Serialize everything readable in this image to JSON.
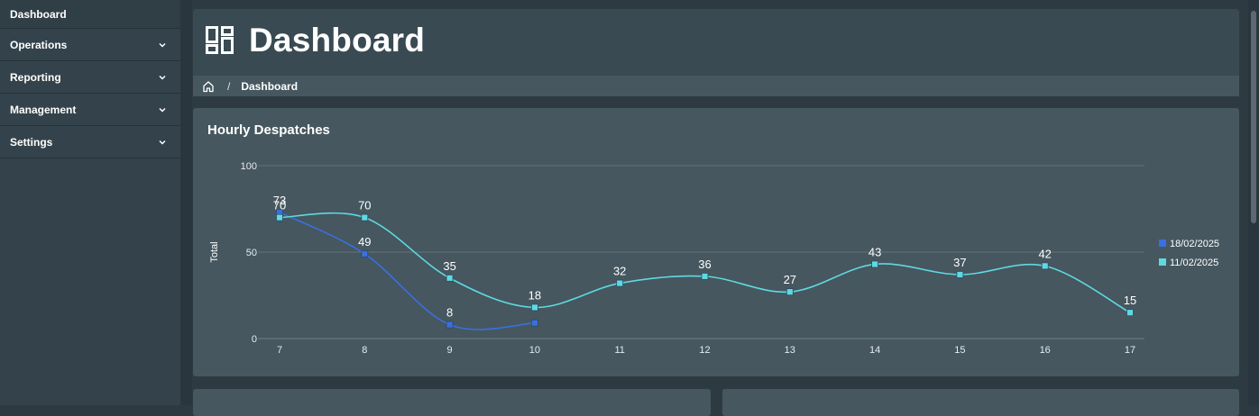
{
  "sidebar": {
    "items": [
      {
        "label": "Dashboard"
      },
      {
        "label": "Operations"
      },
      {
        "label": "Reporting"
      },
      {
        "label": "Management"
      },
      {
        "label": "Settings"
      }
    ]
  },
  "header": {
    "title": "Dashboard",
    "icon": "dashboard-grid-icon"
  },
  "breadcrumb": {
    "separator": "/",
    "current": "Dashboard"
  },
  "colors": {
    "series_a": "#3a6fe0",
    "series_b": "#5fd9e0"
  },
  "chart_data": {
    "type": "line",
    "title": "Hourly Despatches",
    "xlabel": "",
    "ylabel": "Total",
    "x": [
      7,
      8,
      9,
      10,
      11,
      12,
      13,
      14,
      15,
      16,
      17
    ],
    "yticks": [
      0,
      50,
      100
    ],
    "ylim": [
      0,
      100
    ],
    "legend_position": "right",
    "series": [
      {
        "name": "18/02/2025",
        "color": "#3a6fe0",
        "x": [
          7,
          8,
          9,
          10
        ],
        "values": [
          73,
          49,
          8,
          9
        ],
        "labels": [
          "73",
          "49",
          "8",
          ""
        ]
      },
      {
        "name": "11/02/2025",
        "color": "#5fd9e0",
        "x": [
          7,
          8,
          9,
          10,
          11,
          12,
          13,
          14,
          15,
          16,
          17
        ],
        "values": [
          70,
          70,
          35,
          18,
          32,
          36,
          27,
          43,
          37,
          42,
          15
        ],
        "labels": [
          "70",
          "70",
          "35",
          "18",
          "32",
          "36",
          "27",
          "43",
          "37",
          "42",
          "15"
        ]
      }
    ]
  }
}
